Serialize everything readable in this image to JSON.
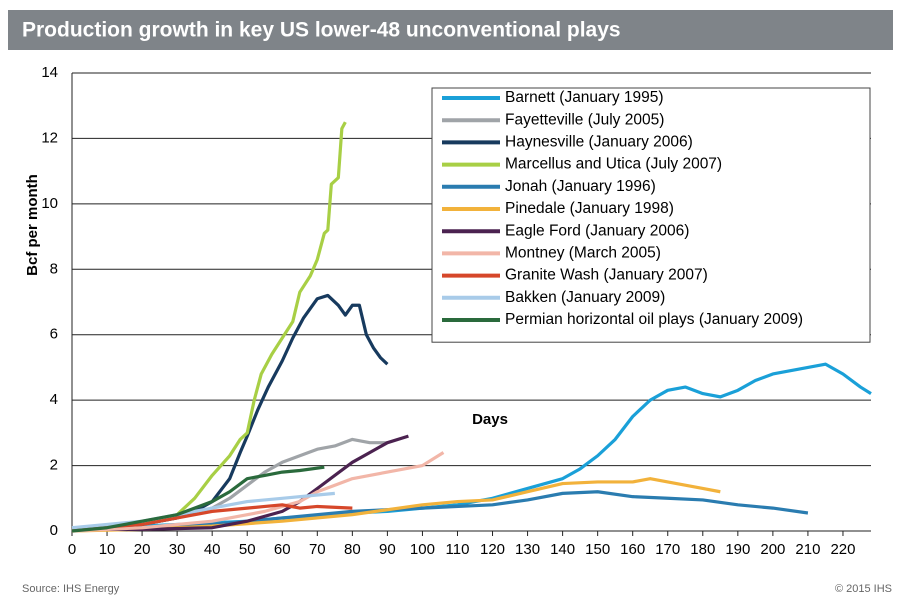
{
  "chart_data": {
    "type": "line",
    "title": "Production growth in key US lower-48 unconventional plays",
    "y_label": "Bcf per month",
    "annotation": "Days",
    "source": "Source: IHS Energy",
    "copyright": "© 2015 IHS",
    "xlim": [
      0,
      228
    ],
    "ylim": [
      0,
      14
    ],
    "xticks": [
      0,
      10,
      20,
      30,
      40,
      50,
      60,
      70,
      80,
      90,
      100,
      110,
      120,
      130,
      140,
      150,
      160,
      170,
      180,
      190,
      200,
      210,
      220
    ],
    "yticks": [
      0,
      2,
      4,
      6,
      8,
      10,
      12,
      14
    ],
    "grid": true,
    "legend": "upper right",
    "series": [
      {
        "name": "Barnett (January 1995)",
        "color": "#1aa0d8",
        "x": [
          0,
          10,
          20,
          30,
          40,
          50,
          60,
          70,
          80,
          90,
          100,
          110,
          120,
          130,
          140,
          145,
          150,
          155,
          160,
          165,
          170,
          175,
          180,
          185,
          190,
          195,
          200,
          205,
          210,
          215,
          220,
          225,
          228
        ],
        "values": [
          0.05,
          0.1,
          0.15,
          0.2,
          0.25,
          0.3,
          0.4,
          0.45,
          0.55,
          0.6,
          0.7,
          0.8,
          1.0,
          1.3,
          1.6,
          1.9,
          2.3,
          2.8,
          3.5,
          4.0,
          4.3,
          4.4,
          4.2,
          4.1,
          4.3,
          4.6,
          4.8,
          4.9,
          5.0,
          5.1,
          4.8,
          4.4,
          4.2
        ]
      },
      {
        "name": "Fayetteville (July 2005)",
        "color": "#a0a4a8",
        "x": [
          0,
          10,
          20,
          30,
          40,
          45,
          50,
          55,
          60,
          65,
          70,
          75,
          80,
          85,
          90
        ],
        "values": [
          0.1,
          0.1,
          0.2,
          0.4,
          0.7,
          1.0,
          1.4,
          1.8,
          2.1,
          2.3,
          2.5,
          2.6,
          2.8,
          2.7,
          2.7
        ]
      },
      {
        "name": "Haynesville (January 2006)",
        "color": "#173a5e",
        "x": [
          0,
          10,
          20,
          30,
          35,
          40,
          45,
          48,
          50,
          53,
          56,
          60,
          63,
          66,
          70,
          73,
          76,
          78,
          80,
          82,
          84,
          86,
          88,
          90
        ],
        "values": [
          0.05,
          0.1,
          0.2,
          0.4,
          0.6,
          0.9,
          1.6,
          2.4,
          2.9,
          3.7,
          4.4,
          5.2,
          5.9,
          6.5,
          7.1,
          7.2,
          6.9,
          6.6,
          6.9,
          6.9,
          6.0,
          5.6,
          5.3,
          5.1
        ]
      },
      {
        "name": "Marcellus and Utica (July 2007)",
        "color": "#a8cf45",
        "x": [
          0,
          10,
          20,
          30,
          35,
          40,
          45,
          48,
          50,
          52,
          54,
          57,
          60,
          63,
          65,
          68,
          70,
          72,
          73,
          74,
          76,
          77,
          78
        ],
        "values": [
          0.05,
          0.1,
          0.25,
          0.5,
          1.0,
          1.7,
          2.3,
          2.8,
          3.0,
          4.0,
          4.8,
          5.4,
          5.9,
          6.4,
          7.3,
          7.8,
          8.3,
          9.1,
          9.2,
          10.6,
          10.8,
          12.3,
          12.5
        ]
      },
      {
        "name": "Jonah (January 1996)",
        "color": "#2a7cb0",
        "x": [
          0,
          20,
          40,
          60,
          80,
          100,
          120,
          130,
          140,
          150,
          160,
          170,
          180,
          190,
          200,
          210
        ],
        "values": [
          0.05,
          0.1,
          0.2,
          0.4,
          0.6,
          0.7,
          0.8,
          0.95,
          1.15,
          1.2,
          1.05,
          1.0,
          0.95,
          0.8,
          0.7,
          0.55
        ]
      },
      {
        "name": "Pinedale (January 1998)",
        "color": "#f2b23b",
        "x": [
          0,
          20,
          40,
          60,
          80,
          100,
          110,
          120,
          130,
          140,
          150,
          160,
          165,
          170,
          175,
          180,
          185
        ],
        "values": [
          0,
          0.05,
          0.15,
          0.3,
          0.5,
          0.8,
          0.9,
          0.95,
          1.2,
          1.45,
          1.5,
          1.5,
          1.6,
          1.5,
          1.4,
          1.3,
          1.2
        ]
      },
      {
        "name": "Eagle Ford (January 2006)",
        "color": "#4b2250",
        "x": [
          0,
          20,
          40,
          50,
          60,
          65,
          70,
          75,
          80,
          85,
          90,
          96
        ],
        "values": [
          0.05,
          0.05,
          0.1,
          0.3,
          0.6,
          0.9,
          1.3,
          1.7,
          2.1,
          2.4,
          2.7,
          2.9
        ]
      },
      {
        "name": "Montney (March 2005)",
        "color": "#f2b6a8",
        "x": [
          0,
          20,
          40,
          55,
          65,
          70,
          75,
          80,
          90,
          100,
          106
        ],
        "values": [
          0,
          0.1,
          0.3,
          0.6,
          0.9,
          1.2,
          1.4,
          1.6,
          1.8,
          2.0,
          2.4
        ]
      },
      {
        "name": "Granite Wash (January 2007)",
        "color": "#d6472a",
        "x": [
          0,
          20,
          30,
          40,
          50,
          60,
          65,
          70,
          80
        ],
        "values": [
          0.05,
          0.2,
          0.4,
          0.6,
          0.7,
          0.8,
          0.7,
          0.75,
          0.7
        ]
      },
      {
        "name": "Bakken (January 2009)",
        "color": "#a8cbe9",
        "x": [
          0,
          20,
          30,
          40,
          50,
          60,
          70,
          75
        ],
        "values": [
          0.1,
          0.3,
          0.5,
          0.7,
          0.9,
          1.0,
          1.1,
          1.15
        ]
      },
      {
        "name": "Permian horizontal oil plays (January 2009)",
        "color": "#2a6a3c",
        "x": [
          0,
          10,
          20,
          30,
          40,
          45,
          50,
          55,
          60,
          65,
          72
        ],
        "values": [
          0,
          0.1,
          0.3,
          0.5,
          0.9,
          1.2,
          1.6,
          1.7,
          1.8,
          1.85,
          1.95
        ]
      }
    ]
  }
}
